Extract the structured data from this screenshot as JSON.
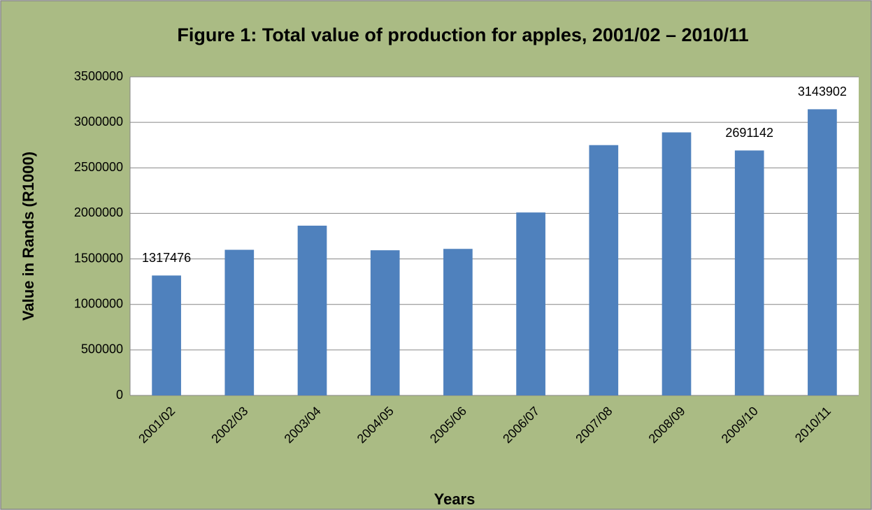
{
  "chart_data": {
    "type": "bar",
    "title": "Figure 1: Total value of production for apples, 2001/02 – 2010/11",
    "x_label": "Years",
    "y_label": "Value in Rands (R1000)",
    "categories": [
      "2001/02",
      "2002/03",
      "2003/04",
      "2004/05",
      "2005/06",
      "2006/07",
      "2007/08",
      "2008/09",
      "2009/10",
      "2010/11"
    ],
    "values": [
      1317476,
      1600000,
      1865000,
      1595000,
      1610000,
      2010000,
      2750000,
      2890000,
      2691142,
      3143902
    ],
    "value_labels": [
      "1317476",
      null,
      null,
      null,
      null,
      null,
      null,
      null,
      "2691142",
      "3143902"
    ],
    "color": "#4f81bd",
    "ylim": [
      0,
      3500000
    ],
    "yticks": [
      0,
      500000,
      1000000,
      1500000,
      2000000,
      2500000,
      3000000,
      3500000
    ],
    "grid": true
  }
}
